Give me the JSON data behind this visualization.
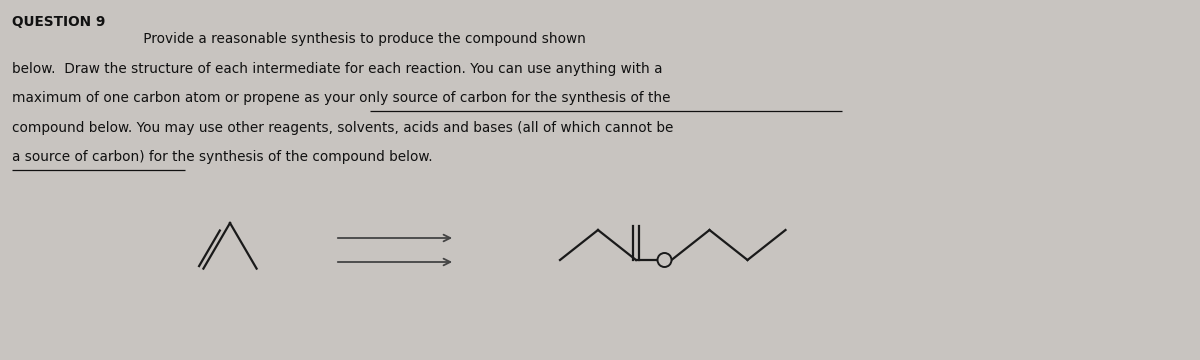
{
  "bg_color": "#c8c4c0",
  "text_color": "#111111",
  "question_label": "QUESTION 9",
  "line1": "                              Provide a reasonable synthesis to produce the compound shown",
  "line2": "below.  Draw the structure of each intermediate for each reaction. You can use anything with a",
  "line3": "maximum of one carbon atom or propene as your only source of carbon for the synthesis of the",
  "line4": "compound below. You may use other reagents, solvents, acids and bases (all of which cannot be",
  "line5": "a source of carbon) for the synthesis of the compound below.",
  "font_size": 9.8,
  "mol_line_color": "#1a1a1a",
  "arrow_color": "#444444"
}
